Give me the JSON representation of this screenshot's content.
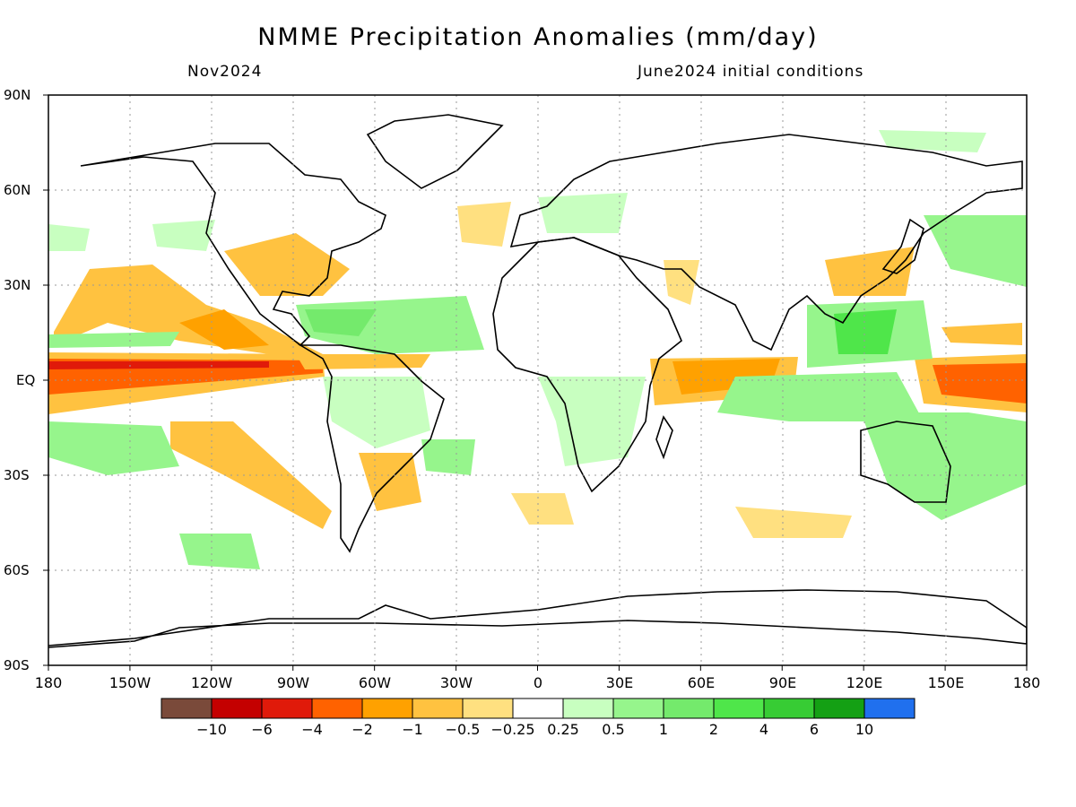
{
  "title": "NMME Precipitation Anomalies (mm/day)",
  "subtitle_left": "Nov2024",
  "subtitle_right": "June2024 initial conditions",
  "y_axis_labels": [
    "90N",
    "60N",
    "30N",
    "EQ",
    "30S",
    "60S",
    "90S"
  ],
  "x_axis_labels": [
    "180",
    "150W",
    "120W",
    "90W",
    "60W",
    "30W",
    "0",
    "30E",
    "60E",
    "90E",
    "120E",
    "150E",
    "180"
  ],
  "colorbar": {
    "colors": [
      "#7a4a3a",
      "#c40000",
      "#e01a0a",
      "#ff6200",
      "#ffa100",
      "#ffc240",
      "#ffe080",
      "#ffffff",
      "#c8ffc0",
      "#96f58c",
      "#74ea6c",
      "#4fe64a",
      "#37cc34",
      "#14a014",
      "#2070ee"
    ],
    "labels": [
      "−10",
      "−6",
      "−4",
      "−2",
      "−1",
      "−0.5",
      "−0.25",
      "0.25",
      "0.5",
      "1",
      "2",
      "4",
      "6",
      "10"
    ]
  },
  "colors": {
    "dry_light": "#ffe080",
    "dry_mid": "#ffc240",
    "dry_strong": "#ffa100",
    "dry_deep": "#ff6200",
    "dry_extreme": "#e01a0a",
    "wet_light": "#c8ffc0",
    "wet_mid": "#96f58c",
    "wet_strong": "#74ea6c",
    "wet_deep": "#4fe64a"
  },
  "map": {
    "projection": "equirectangular",
    "lon_range": [
      -180,
      180
    ],
    "lat_range": [
      -90,
      90
    ],
    "gridlines": "dotted every 30 degrees"
  }
}
